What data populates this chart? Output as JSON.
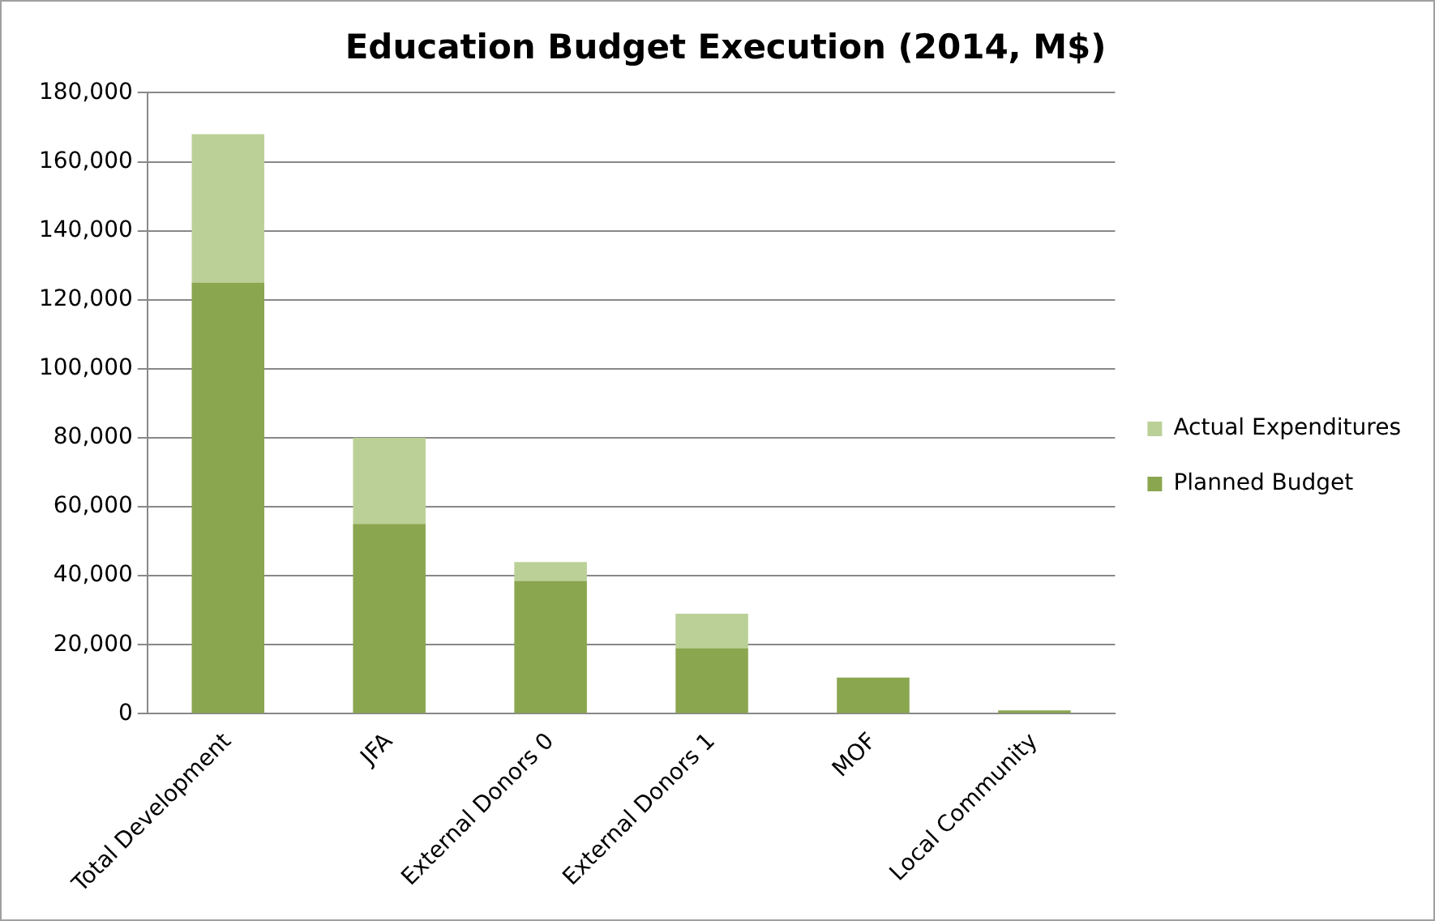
{
  "chart_data": {
    "type": "bar",
    "title": "Education Budget Execution (2014, M$)",
    "categories": [
      "Total Development",
      "JFA",
      "External Donors 0",
      "External Donors 1",
      "MOF",
      "Local Community"
    ],
    "stacked": true,
    "series": [
      {
        "name": "Planned Budget",
        "color": "#8aa64f",
        "values": [
          125000,
          55000,
          38500,
          19000,
          10500,
          1000
        ]
      },
      {
        "name": "Actual Expenditures",
        "color": "#bbd097",
        "values": [
          43000,
          25000,
          5500,
          10000,
          0,
          0
        ]
      }
    ],
    "ylim": [
      0,
      180000
    ],
    "yticks": [
      {
        "value": 0,
        "label": "0"
      },
      {
        "value": 20000,
        "label": "20,000"
      },
      {
        "value": 40000,
        "label": "40,000"
      },
      {
        "value": 60000,
        "label": "60,000"
      },
      {
        "value": 80000,
        "label": "80,000"
      },
      {
        "value": 100000,
        "label": "100,000"
      },
      {
        "value": 120000,
        "label": "120,000"
      },
      {
        "value": 140000,
        "label": "140,000"
      },
      {
        "value": 160000,
        "label": "160,000"
      },
      {
        "value": 180000,
        "label": "180,000"
      }
    ],
    "grid": "y",
    "legend": "right"
  }
}
